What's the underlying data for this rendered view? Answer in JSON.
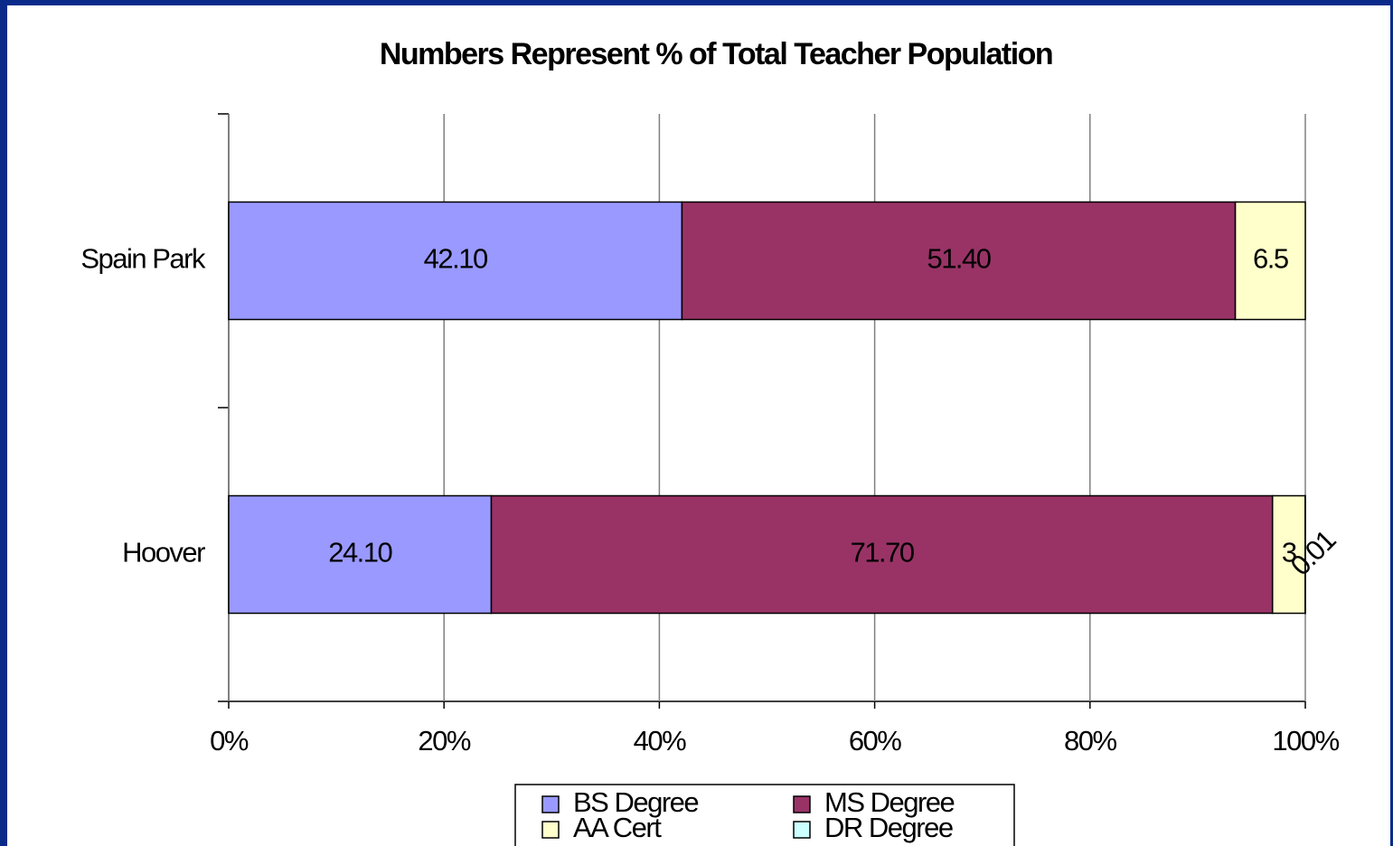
{
  "chart_data": {
    "type": "stacked_percent_barh",
    "title": "Numbers Represent % of Total Teacher Population",
    "categories": [
      "Spain Park",
      "Hoover"
    ],
    "series": [
      {
        "name": "BS Degree",
        "color": "#9999ff",
        "values": [
          42.1,
          24.1
        ],
        "value_labels": [
          "42.10",
          "24.10"
        ]
      },
      {
        "name": "MS Degree",
        "color": "#993366",
        "values": [
          51.4,
          71.7
        ],
        "value_labels": [
          "51.40",
          "71.70"
        ]
      },
      {
        "name": "AA Cert",
        "color": "#ffffcc",
        "values": [
          6.5,
          3
        ]
      },
      {
        "name": "DR Degree",
        "color": "#ccffff",
        "values": [
          null,
          0.01
        ]
      }
    ],
    "xlim": [
      0,
      100
    ],
    "xticks": [
      {
        "value": 0,
        "label": "0%"
      },
      {
        "value": 20,
        "label": "20%"
      },
      {
        "value": 40,
        "label": "40%"
      },
      {
        "value": 60,
        "label": "60%"
      },
      {
        "value": 80,
        "label": "80%"
      },
      {
        "value": 100,
        "label": "100%"
      }
    ],
    "grid": true
  }
}
